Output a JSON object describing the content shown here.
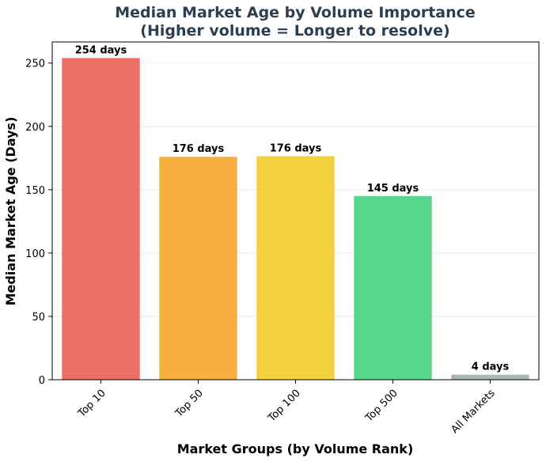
{
  "chart_data": {
    "type": "bar",
    "title": "Median Market Age by Volume Importance\n(Higher volume = Longer to resolve)",
    "title_lines": [
      "Median Market Age by Volume Importance",
      "(Higher volume = Longer to resolve)"
    ],
    "xlabel": "Market Groups (by Volume Rank)",
    "ylabel": "Median Market Age (Days)",
    "categories": [
      "Top 10",
      "Top 50",
      "Top 100",
      "Top 500",
      "All Markets"
    ],
    "values": [
      254,
      176,
      176.5,
      145,
      4
    ],
    "data_labels": [
      "254 days",
      "176 days",
      "176 days",
      "145 days",
      "4 days"
    ],
    "colors": [
      "#ec7063",
      "#f5b041",
      "#f4d03f",
      "#58d68d",
      "#aab7b8"
    ],
    "ylim": [
      0,
      266.7
    ],
    "yticks": [
      0,
      50,
      100,
      150,
      200,
      250
    ],
    "grid": "y",
    "legend": "none"
  }
}
